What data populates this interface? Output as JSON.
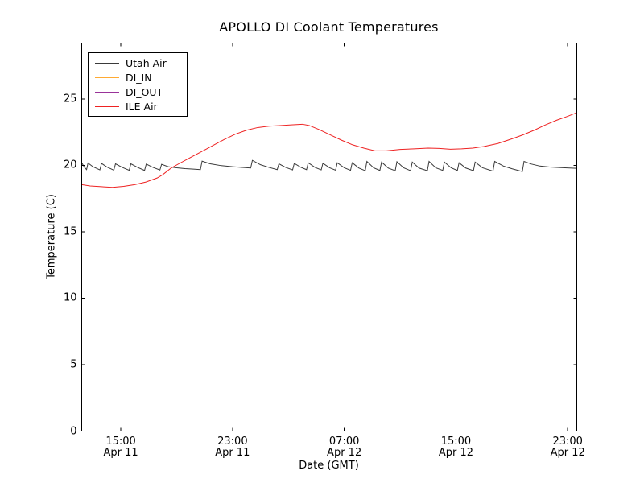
{
  "figure": {
    "background": "#ffffff",
    "frame_color": "#000000"
  },
  "chart_data": {
    "type": "line",
    "title": "APOLLO DI Coolant Temperatures",
    "xlabel": "Date (GMT)",
    "ylabel": "Temperature (C)",
    "x_unit": "hours since Apr 11 00:00 GMT",
    "xlim": [
      12.2,
      47.65
    ],
    "ylim": [
      0,
      29.21
    ],
    "grid": false,
    "tick_direction": "in",
    "legend_position": "upper-left",
    "yticks": [
      {
        "v": 0,
        "label": "0"
      },
      {
        "v": 5,
        "label": "5"
      },
      {
        "v": 10,
        "label": "10"
      },
      {
        "v": 15,
        "label": "15"
      },
      {
        "v": 20,
        "label": "20"
      },
      {
        "v": 25,
        "label": "25"
      }
    ],
    "xticks": [
      {
        "t": 15,
        "time": "15:00",
        "date": "Apr 11"
      },
      {
        "t": 23,
        "time": "23:00",
        "date": "Apr 11"
      },
      {
        "t": 31,
        "time": "07:00",
        "date": "Apr 12"
      },
      {
        "t": 39,
        "time": "15:00",
        "date": "Apr 12"
      },
      {
        "t": 47,
        "time": "23:00",
        "date": "Apr 12"
      }
    ],
    "series": [
      {
        "name": "Utah Air",
        "color": "#3a3a3a",
        "opacity": 1,
        "points": [
          [
            12.2,
            20.2
          ],
          [
            12.4,
            19.85
          ],
          [
            12.55,
            19.68
          ],
          [
            12.65,
            20.18
          ],
          [
            13.0,
            19.9
          ],
          [
            13.5,
            19.66
          ],
          [
            13.62,
            20.15
          ],
          [
            14.0,
            19.88
          ],
          [
            14.5,
            19.64
          ],
          [
            14.62,
            20.12
          ],
          [
            15.1,
            19.85
          ],
          [
            15.6,
            19.63
          ],
          [
            15.72,
            20.12
          ],
          [
            16.2,
            19.85
          ],
          [
            16.7,
            19.62
          ],
          [
            16.82,
            20.1
          ],
          [
            17.3,
            19.85
          ],
          [
            17.8,
            19.65
          ],
          [
            17.92,
            20.08
          ],
          [
            18.4,
            19.9
          ],
          [
            19.0,
            19.82
          ],
          [
            19.6,
            19.76
          ],
          [
            20.2,
            19.72
          ],
          [
            20.7,
            19.68
          ],
          [
            20.82,
            20.32
          ],
          [
            21.4,
            20.12
          ],
          [
            22.2,
            19.98
          ],
          [
            23.0,
            19.9
          ],
          [
            23.8,
            19.84
          ],
          [
            24.3,
            19.8
          ],
          [
            24.42,
            20.38
          ],
          [
            25.0,
            20.05
          ],
          [
            25.6,
            19.85
          ],
          [
            26.2,
            19.68
          ],
          [
            26.32,
            20.12
          ],
          [
            26.8,
            19.85
          ],
          [
            27.3,
            19.66
          ],
          [
            27.42,
            20.15
          ],
          [
            27.9,
            19.85
          ],
          [
            28.3,
            19.68
          ],
          [
            28.42,
            20.2
          ],
          [
            28.9,
            19.85
          ],
          [
            29.35,
            19.66
          ],
          [
            29.47,
            20.16
          ],
          [
            29.95,
            19.82
          ],
          [
            30.38,
            19.64
          ],
          [
            30.5,
            20.2
          ],
          [
            31.0,
            19.82
          ],
          [
            31.45,
            19.63
          ],
          [
            31.57,
            20.2
          ],
          [
            32.05,
            19.8
          ],
          [
            32.5,
            19.6
          ],
          [
            32.62,
            20.3
          ],
          [
            33.1,
            19.82
          ],
          [
            33.55,
            19.62
          ],
          [
            33.67,
            20.25
          ],
          [
            34.15,
            19.8
          ],
          [
            34.65,
            19.6
          ],
          [
            34.77,
            20.28
          ],
          [
            35.25,
            19.82
          ],
          [
            35.75,
            19.6
          ],
          [
            35.87,
            20.25
          ],
          [
            36.35,
            19.8
          ],
          [
            36.95,
            19.6
          ],
          [
            37.07,
            20.3
          ],
          [
            37.55,
            19.82
          ],
          [
            38.05,
            19.62
          ],
          [
            38.17,
            20.25
          ],
          [
            38.65,
            19.82
          ],
          [
            39.1,
            19.62
          ],
          [
            39.22,
            20.2
          ],
          [
            39.7,
            19.8
          ],
          [
            40.25,
            19.6
          ],
          [
            40.37,
            20.25
          ],
          [
            40.9,
            19.82
          ],
          [
            41.65,
            19.57
          ],
          [
            41.77,
            20.3
          ],
          [
            42.4,
            19.95
          ],
          [
            43.0,
            19.75
          ],
          [
            43.75,
            19.54
          ],
          [
            43.87,
            20.3
          ],
          [
            44.4,
            20.1
          ],
          [
            45.0,
            19.95
          ],
          [
            45.7,
            19.88
          ],
          [
            46.5,
            19.83
          ],
          [
            47.6,
            19.78
          ]
        ]
      },
      {
        "name": "DI_IN",
        "color": "#ffaa33",
        "opacity": 1,
        "points": [
          [
            12.2,
            0
          ],
          [
            47.65,
            0
          ]
        ]
      },
      {
        "name": "DI_OUT",
        "color": "#993399",
        "opacity": 0.7,
        "points": [
          [
            12.2,
            0
          ],
          [
            47.65,
            0
          ]
        ]
      },
      {
        "name": "ILE Air",
        "color": "#ee2222",
        "opacity": 1,
        "points": [
          [
            12.2,
            18.55
          ],
          [
            12.8,
            18.45
          ],
          [
            13.6,
            18.4
          ],
          [
            14.4,
            18.35
          ],
          [
            15.2,
            18.42
          ],
          [
            16.0,
            18.55
          ],
          [
            16.8,
            18.75
          ],
          [
            17.6,
            19.05
          ],
          [
            18.0,
            19.3
          ],
          [
            18.6,
            19.8
          ],
          [
            19.2,
            20.15
          ],
          [
            20.0,
            20.6
          ],
          [
            20.8,
            21.05
          ],
          [
            21.6,
            21.5
          ],
          [
            22.4,
            21.95
          ],
          [
            23.2,
            22.35
          ],
          [
            24.0,
            22.65
          ],
          [
            24.8,
            22.85
          ],
          [
            25.6,
            22.95
          ],
          [
            26.4,
            23.0
          ],
          [
            27.2,
            23.05
          ],
          [
            28.0,
            23.1
          ],
          [
            28.5,
            23.0
          ],
          [
            29.2,
            22.7
          ],
          [
            30.0,
            22.3
          ],
          [
            30.8,
            21.9
          ],
          [
            31.6,
            21.55
          ],
          [
            32.4,
            21.3
          ],
          [
            33.2,
            21.1
          ],
          [
            34.0,
            21.1
          ],
          [
            35.0,
            21.2
          ],
          [
            36.0,
            21.25
          ],
          [
            37.0,
            21.3
          ],
          [
            37.8,
            21.28
          ],
          [
            38.6,
            21.22
          ],
          [
            39.4,
            21.25
          ],
          [
            40.2,
            21.3
          ],
          [
            41.0,
            21.42
          ],
          [
            42.0,
            21.65
          ],
          [
            43.0,
            22.0
          ],
          [
            43.8,
            22.3
          ],
          [
            44.6,
            22.65
          ],
          [
            45.4,
            23.05
          ],
          [
            46.2,
            23.4
          ],
          [
            47.0,
            23.7
          ],
          [
            47.6,
            23.95
          ]
        ]
      }
    ],
    "legend": [
      "Utah Air",
      "DI_IN",
      "DI_OUT",
      "ILE Air"
    ]
  }
}
